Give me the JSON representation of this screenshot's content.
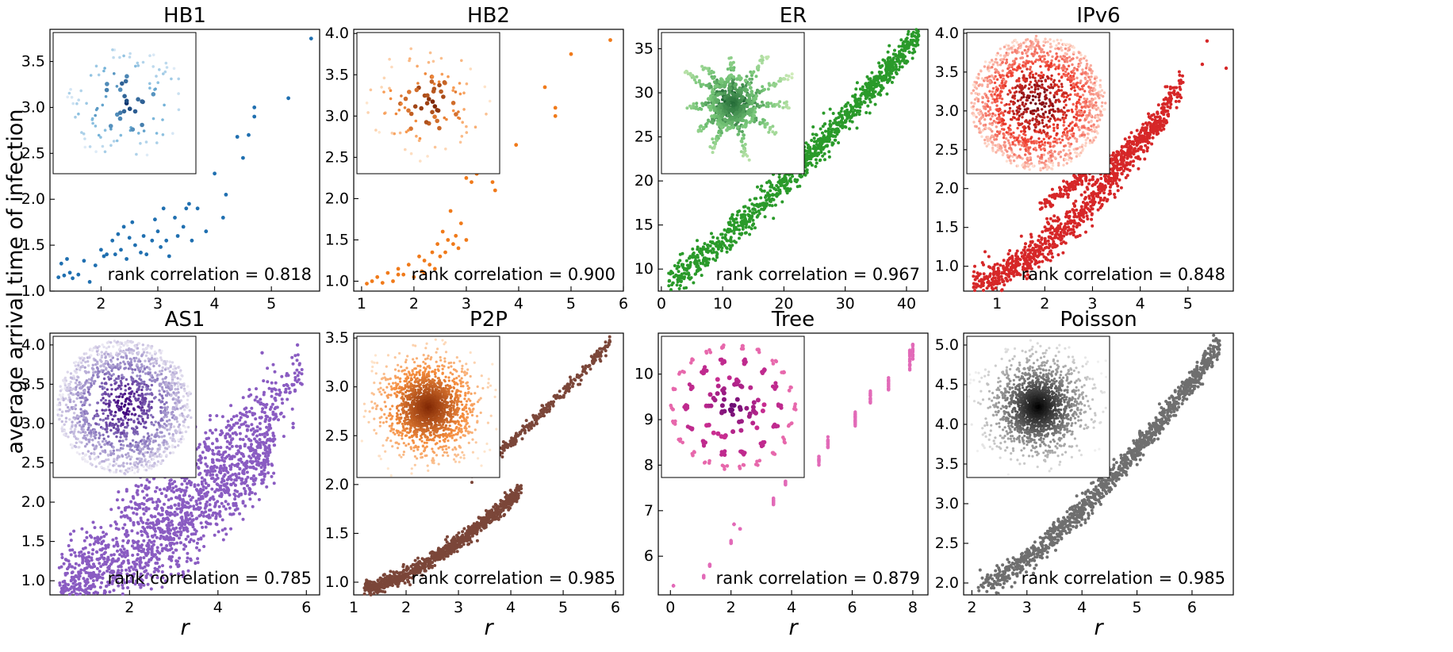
{
  "figure": {
    "ylabel": "average arrival time of infection",
    "xlabel": "r"
  },
  "chart_data": [
    {
      "type": "scatter",
      "title": "HB1",
      "color": "#1f6fb0",
      "cmap": "Blues",
      "annotation": "rank correlation = 0.818",
      "xlim": [
        1.1,
        5.85
      ],
      "ylim": [
        1.0,
        3.85
      ],
      "xticks": [
        2,
        3,
        4,
        5
      ],
      "yticks": [
        1.0,
        1.5,
        2.0,
        2.5,
        3.0,
        3.5
      ],
      "xlabel": "",
      "ylabel": "average arrival time of infection",
      "points": [
        [
          1.25,
          1.15
        ],
        [
          1.3,
          1.3
        ],
        [
          1.35,
          1.17
        ],
        [
          1.4,
          1.35
        ],
        [
          1.45,
          1.2
        ],
        [
          1.5,
          1.14
        ],
        [
          1.6,
          1.18
        ],
        [
          1.7,
          1.33
        ],
        [
          1.8,
          1.1
        ],
        [
          1.9,
          1.28
        ],
        [
          2.0,
          1.45
        ],
        [
          2.05,
          1.38
        ],
        [
          2.1,
          1.4
        ],
        [
          2.2,
          1.55
        ],
        [
          2.25,
          1.4
        ],
        [
          2.3,
          1.62
        ],
        [
          2.35,
          1.45
        ],
        [
          2.4,
          1.7
        ],
        [
          2.45,
          1.35
        ],
        [
          2.5,
          1.58
        ],
        [
          2.55,
          1.75
        ],
        [
          2.6,
          1.5
        ],
        [
          2.7,
          1.42
        ],
        [
          2.75,
          1.6
        ],
        [
          2.8,
          1.4
        ],
        [
          2.9,
          1.55
        ],
        [
          2.95,
          1.78
        ],
        [
          3.0,
          1.65
        ],
        [
          3.05,
          1.48
        ],
        [
          3.1,
          1.9
        ],
        [
          3.15,
          1.55
        ],
        [
          3.2,
          1.38
        ],
        [
          3.3,
          1.8
        ],
        [
          3.35,
          1.6
        ],
        [
          3.45,
          1.7
        ],
        [
          3.5,
          1.9
        ],
        [
          3.55,
          1.95
        ],
        [
          3.6,
          1.55
        ],
        [
          3.7,
          1.9
        ],
        [
          3.85,
          1.65
        ],
        [
          4.0,
          2.28
        ],
        [
          4.15,
          1.8
        ],
        [
          4.2,
          2.05
        ],
        [
          4.4,
          2.68
        ],
        [
          4.5,
          2.45
        ],
        [
          4.6,
          2.7
        ],
        [
          4.7,
          2.9
        ],
        [
          4.7,
          3.0
        ],
        [
          5.3,
          3.1
        ],
        [
          5.7,
          3.75
        ]
      ],
      "inset": {
        "kind": "clusters",
        "seed": 11
      }
    },
    {
      "type": "scatter",
      "title": "HB2",
      "color": "#f07a1a",
      "cmap": "Oranges",
      "annotation": "rank correlation = 0.900",
      "xlim": [
        0.85,
        6.0
      ],
      "ylim": [
        0.88,
        4.05
      ],
      "xticks": [
        1,
        2,
        3,
        4,
        5,
        6
      ],
      "yticks": [
        1.0,
        1.5,
        2.0,
        2.5,
        3.0,
        3.5,
        4.0
      ],
      "xlabel": "",
      "points": [
        [
          1.1,
          0.97
        ],
        [
          1.2,
          1.0
        ],
        [
          1.3,
          1.05
        ],
        [
          1.4,
          0.98
        ],
        [
          1.5,
          1.1
        ],
        [
          1.6,
          1.0
        ],
        [
          1.7,
          1.15
        ],
        [
          1.8,
          1.08
        ],
        [
          1.9,
          1.2
        ],
        [
          2.0,
          1.05
        ],
        [
          2.1,
          1.3
        ],
        [
          2.15,
          1.12
        ],
        [
          2.2,
          1.25
        ],
        [
          2.3,
          1.2
        ],
        [
          2.35,
          1.35
        ],
        [
          2.4,
          1.15
        ],
        [
          2.45,
          1.45
        ],
        [
          2.5,
          1.3
        ],
        [
          2.55,
          1.6
        ],
        [
          2.6,
          1.35
        ],
        [
          2.65,
          1.5
        ],
        [
          2.7,
          1.85
        ],
        [
          2.75,
          1.45
        ],
        [
          2.8,
          1.55
        ],
        [
          2.85,
          1.4
        ],
        [
          2.9,
          1.7
        ],
        [
          3.0,
          1.5
        ],
        [
          3.0,
          2.25
        ],
        [
          3.1,
          2.2
        ],
        [
          3.2,
          2.3
        ],
        [
          3.5,
          2.2
        ],
        [
          3.55,
          2.1
        ],
        [
          3.95,
          2.65
        ],
        [
          4.5,
          3.35
        ],
        [
          4.7,
          3.0
        ],
        [
          4.7,
          3.1
        ],
        [
          5.0,
          3.75
        ],
        [
          5.75,
          3.92
        ],
        [
          1.7,
          1.08
        ],
        [
          2.2,
          1.1
        ]
      ],
      "inset": {
        "kind": "clusters",
        "seed": 23
      }
    },
    {
      "type": "scatter",
      "title": "ER",
      "color": "#2a9a2a",
      "cmap": "Greens",
      "annotation": "rank correlation = 0.967",
      "xlim": [
        -0.5,
        43.5
      ],
      "ylim": [
        7.5,
        37.2
      ],
      "xticks": [
        0,
        10,
        20,
        30,
        40
      ],
      "yticks": [
        10,
        15,
        20,
        25,
        30,
        35
      ],
      "xlabel": "",
      "curve": {
        "x": [
          1.0,
          42.0
        ],
        "y": [
          8.6,
          36.6
        ],
        "exp": 1.18,
        "spread": 0.9
      },
      "inset": {
        "kind": "star",
        "seed": 37
      }
    },
    {
      "type": "scatter",
      "title": "IPv6",
      "color": "#d62728",
      "cmap": "Reds",
      "annotation": "rank correlation = 0.848",
      "xlim": [
        0.3,
        5.95
      ],
      "ylim": [
        0.68,
        4.05
      ],
      "xticks": [
        1,
        2,
        3,
        4,
        5
      ],
      "yticks": [
        1.0,
        1.5,
        2.0,
        2.5,
        3.0,
        3.5,
        4.0
      ],
      "xlabel": "",
      "bands": [
        {
          "x": [
            0.5,
            4.9
          ],
          "y": [
            0.75,
            3.35
          ],
          "exp": 1.5,
          "spread": 0.12,
          "n": 900
        },
        {
          "x": [
            1.9,
            4.5
          ],
          "y": [
            1.78,
            2.85
          ],
          "exp": 1.0,
          "spread": 0.05,
          "n": 260
        }
      ],
      "extra_points": [
        [
          5.4,
          3.9
        ],
        [
          5.8,
          3.55
        ],
        [
          5.3,
          3.6
        ]
      ],
      "inset": {
        "kind": "ring",
        "seed": 41
      }
    },
    {
      "type": "scatter",
      "title": "AS1",
      "color": "#8a5cc2",
      "cmap": "Purples",
      "annotation": "rank correlation = 0.785",
      "xlim": [
        0.2,
        6.3
      ],
      "ylim": [
        0.82,
        4.15
      ],
      "xticks": [
        2,
        4,
        6
      ],
      "yticks": [
        1.0,
        1.5,
        2.0,
        2.5,
        3.0,
        3.5,
        4.0
      ],
      "xlabel": "r",
      "bands": [
        {
          "x": [
            0.4,
            5.3
          ],
          "y": [
            0.88,
            2.8
          ],
          "exp": 1.4,
          "spread": 0.28,
          "n": 1400
        },
        {
          "x": [
            1.7,
            5.9
          ],
          "y": [
            1.9,
            3.6
          ],
          "exp": 1.2,
          "spread": 0.18,
          "n": 350
        }
      ],
      "extra_points": [
        [
          5.7,
          3.0
        ],
        [
          5.7,
          2.95
        ],
        [
          5.9,
          3.5
        ],
        [
          5.8,
          4.0
        ],
        [
          5.0,
          3.9
        ]
      ],
      "inset": {
        "kind": "ring",
        "seed": 53
      }
    },
    {
      "type": "scatter",
      "title": "P2P",
      "color": "#7b4639",
      "cmap": "Oranges",
      "annotation": "rank correlation = 0.985",
      "xlim": [
        1.0,
        6.15
      ],
      "ylim": [
        0.87,
        3.55
      ],
      "xticks": [
        1,
        2,
        3,
        4,
        5,
        6
      ],
      "yticks": [
        1.0,
        1.5,
        2.0,
        2.5,
        3.0,
        3.5
      ],
      "xlabel": "r",
      "bands": [
        {
          "x": [
            1.2,
            4.2
          ],
          "y": [
            0.93,
            1.95
          ],
          "exp": 1.45,
          "spread": 0.04,
          "n": 900
        },
        {
          "x": [
            3.2,
            5.9
          ],
          "y": [
            2.1,
            3.45
          ],
          "exp": 1.15,
          "spread": 0.03,
          "n": 300
        }
      ],
      "inset": {
        "kind": "blob",
        "seed": 67
      }
    },
    {
      "type": "scatter",
      "title": "Tree",
      "color": "#e26ab8",
      "cmap": "RdPu",
      "annotation": "rank correlation = 0.879",
      "xlim": [
        -0.4,
        8.5
      ],
      "ylim": [
        5.15,
        10.9
      ],
      "xticks": [
        0,
        2,
        4,
        6,
        8
      ],
      "yticks": [
        6,
        7,
        8,
        9,
        10
      ],
      "xlabel": "r",
      "columns": [
        [
          0.1,
          5.35,
          0.0
        ],
        [
          1.1,
          5.55,
          0.05
        ],
        [
          1.3,
          5.8,
          0.05
        ],
        [
          2.0,
          6.3,
          0.1
        ],
        [
          2.1,
          6.7,
          0.0
        ],
        [
          2.3,
          6.6,
          0.0
        ],
        [
          3.4,
          7.2,
          0.15
        ],
        [
          3.8,
          7.6,
          0.1
        ],
        [
          4.9,
          8.1,
          0.2
        ],
        [
          5.2,
          8.5,
          0.25
        ],
        [
          6.1,
          9.0,
          0.35
        ],
        [
          6.6,
          9.5,
          0.3
        ],
        [
          7.2,
          9.8,
          0.3
        ],
        [
          7.9,
          10.3,
          0.45
        ],
        [
          8.0,
          10.5,
          0.35
        ]
      ],
      "inset": {
        "kind": "rings",
        "seed": 79
      }
    },
    {
      "type": "scatter",
      "title": "Poisson",
      "color": "#6f6f6f",
      "cmap": "Greys",
      "annotation": "rank correlation = 0.985",
      "xlim": [
        1.85,
        6.75
      ],
      "ylim": [
        1.85,
        5.15
      ],
      "xticks": [
        2,
        3,
        4,
        5,
        6
      ],
      "yticks": [
        2.0,
        2.5,
        3.0,
        3.5,
        4.0,
        4.5,
        5.0
      ],
      "xlabel": "r",
      "curve": {
        "x": [
          2.1,
          6.5
        ],
        "y": [
          1.95,
          5.0
        ],
        "exp": 1.35,
        "spread": 0.08
      },
      "extra_points": [
        [
          5.9,
          4.5
        ],
        [
          6.0,
          4.4
        ],
        [
          6.4,
          4.85
        ],
        [
          6.5,
          5.0
        ],
        [
          5.7,
          4.2
        ]
      ],
      "inset": {
        "kind": "blob",
        "seed": 83
      }
    }
  ]
}
